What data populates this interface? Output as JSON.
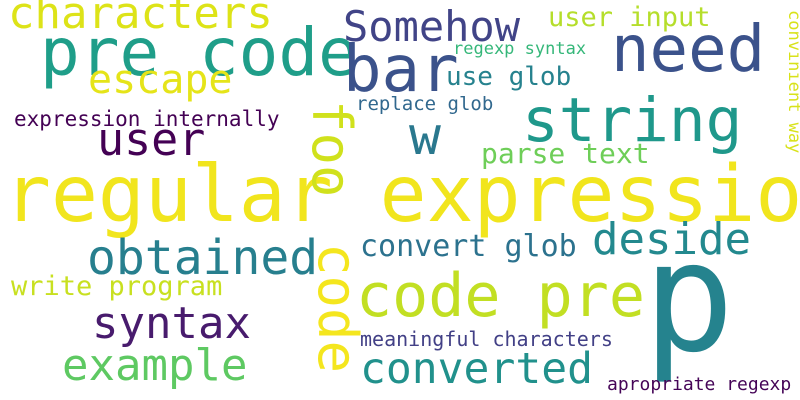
{
  "words": {
    "characters": {
      "text": "characters",
      "color": "#dde318"
    },
    "pre_code": {
      "text": "pre code",
      "color": "#1f9e89"
    },
    "somehow": {
      "text": "Somehow",
      "color": "#414487"
    },
    "bar": {
      "text": "bar",
      "color": "#3b528b"
    },
    "need": {
      "text": "need",
      "color": "#3b528b"
    },
    "user_input": {
      "text": "user input",
      "color": "#b5de2b"
    },
    "regexp_syntax": {
      "text": "regexp syntax",
      "color": "#35b779"
    },
    "convinient_way": {
      "text": "convinient way",
      "color": "#d8e219"
    },
    "escape": {
      "text": "escape",
      "color": "#e5e419"
    },
    "use_glob": {
      "text": "use glob",
      "color": "#26828e"
    },
    "replace_glob": {
      "text": "replace glob",
      "color": "#31688e"
    },
    "string": {
      "text": "string",
      "color": "#1f988b"
    },
    "expression_internally": {
      "text": "expression internally",
      "color": "#440154"
    },
    "user": {
      "text": "user",
      "color": "#440154"
    },
    "w": {
      "text": "w",
      "color": "#2a788e"
    },
    "parse_text": {
      "text": "parse text",
      "color": "#6ece58"
    },
    "regular_expression": {
      "text": "regular expression",
      "color": "#f1e51d"
    },
    "foo": {
      "text": "foo",
      "color": "#d0e11c"
    },
    "obtained": {
      "text": "obtained",
      "color": "#277f8e"
    },
    "deside": {
      "text": "deside",
      "color": "#23898e"
    },
    "convert_glob": {
      "text": "convert glob",
      "color": "#2c728e"
    },
    "write_program": {
      "text": "write program",
      "color": "#c8e020"
    },
    "code": {
      "text": "code",
      "color": "#f4e61e"
    },
    "code_pre": {
      "text": "code pre",
      "color": "#c2df23"
    },
    "p": {
      "text": "p",
      "color": "#25838e"
    },
    "syntax": {
      "text": "syntax",
      "color": "#481b6d"
    },
    "meaningful_characters": {
      "text": "meaningful characters",
      "color": "#424086"
    },
    "example": {
      "text": "example",
      "color": "#5ec962"
    },
    "converted": {
      "text": "converted",
      "color": "#21918c"
    },
    "apropriate_regexp": {
      "text": "apropriate regexp",
      "color": "#450457"
    }
  }
}
